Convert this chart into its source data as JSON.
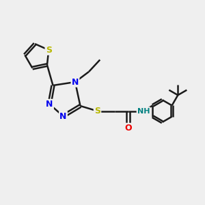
{
  "background_color": "#efefef",
  "bond_color": "#1a1a1a",
  "bond_width": 1.8,
  "atom_colors": {
    "S": "#b8b800",
    "N": "#0000ee",
    "O": "#ee0000",
    "NH": "#008080",
    "C": "#1a1a1a"
  },
  "font_size": 9,
  "fig_size": [
    3.0,
    3.0
  ],
  "dpi": 100,
  "xlim": [
    0,
    12
  ],
  "ylim": [
    0,
    12
  ]
}
